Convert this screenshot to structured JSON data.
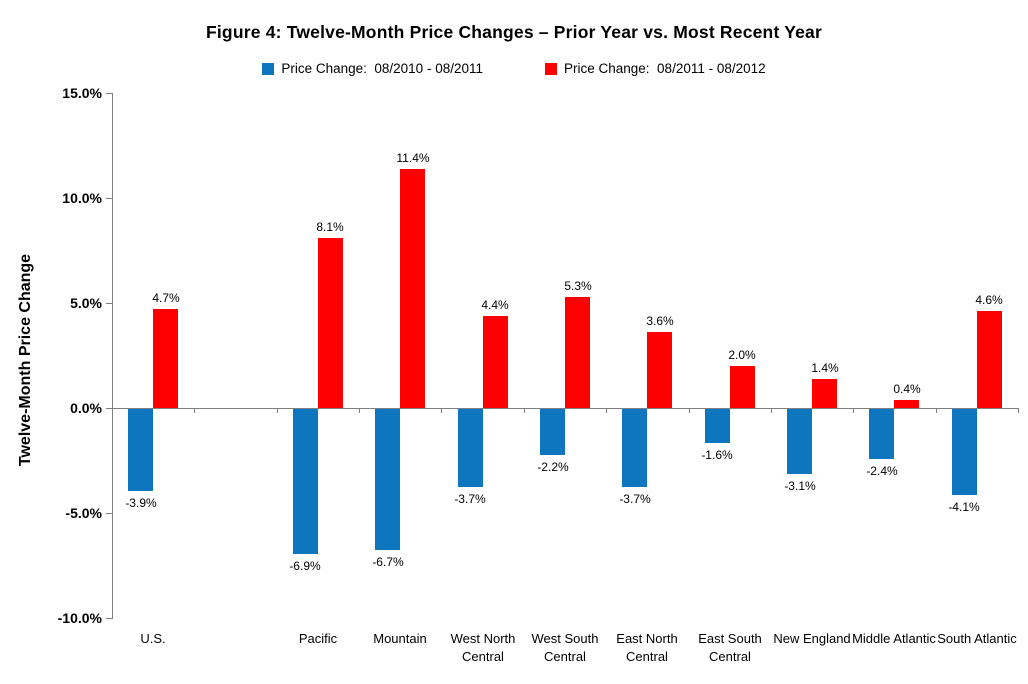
{
  "title": "Figure 4: Twelve-Month Price Changes – Prior Year vs. Most Recent Year",
  "legend": {
    "items": [
      {
        "label": "Price Change:  08/2010 - 08/2011",
        "color": "#0d76be"
      },
      {
        "label": "Price Change:  08/2011 - 08/2012",
        "color": "#fe0000"
      }
    ]
  },
  "y_axis": {
    "title": "Twelve-Month Price Change",
    "tick_labels": [
      "15.0%",
      "10.0%",
      "5.0%",
      "0.0%",
      "-5.0%",
      "-10.0%"
    ],
    "tick_values": [
      15,
      10,
      5,
      0,
      -5,
      -10
    ]
  },
  "chart_data": {
    "type": "bar",
    "title": "Figure 4: Twelve-Month Price Changes – Prior Year vs. Most Recent Year",
    "xlabel": "",
    "ylabel": "Twelve-Month Price Change",
    "ylim": [
      -10,
      15
    ],
    "grid": false,
    "legend_position": "top",
    "gap_after_first_category": true,
    "categories": [
      "U.S.",
      "Pacific",
      "Mountain",
      "West North Central",
      "West South Central",
      "East North Central",
      "East South Central",
      "New England",
      "Middle Atlantic",
      "South Atlantic"
    ],
    "series": [
      {
        "name": "Price Change:  08/2010 - 08/2011",
        "color": "#0d76be",
        "values": [
          -3.9,
          -6.9,
          -6.7,
          -3.7,
          -2.2,
          -3.7,
          -1.6,
          -3.1,
          -2.4,
          -4.1
        ],
        "labels": [
          "-3.9%",
          "-6.9%",
          "-6.7%",
          "-3.7%",
          "-2.2%",
          "-3.7%",
          "-1.6%",
          "-3.1%",
          "-2.4%",
          "-4.1%"
        ]
      },
      {
        "name": "Price Change:  08/2011 - 08/2012",
        "color": "#fe0000",
        "values": [
          4.7,
          8.1,
          11.4,
          4.4,
          5.3,
          3.6,
          2.0,
          1.4,
          0.4,
          4.6
        ],
        "labels": [
          "4.7%",
          "8.1%",
          "11.4%",
          "4.4%",
          "5.3%",
          "3.6%",
          "2.0%",
          "1.4%",
          "0.4%",
          "4.6%"
        ]
      }
    ]
  }
}
